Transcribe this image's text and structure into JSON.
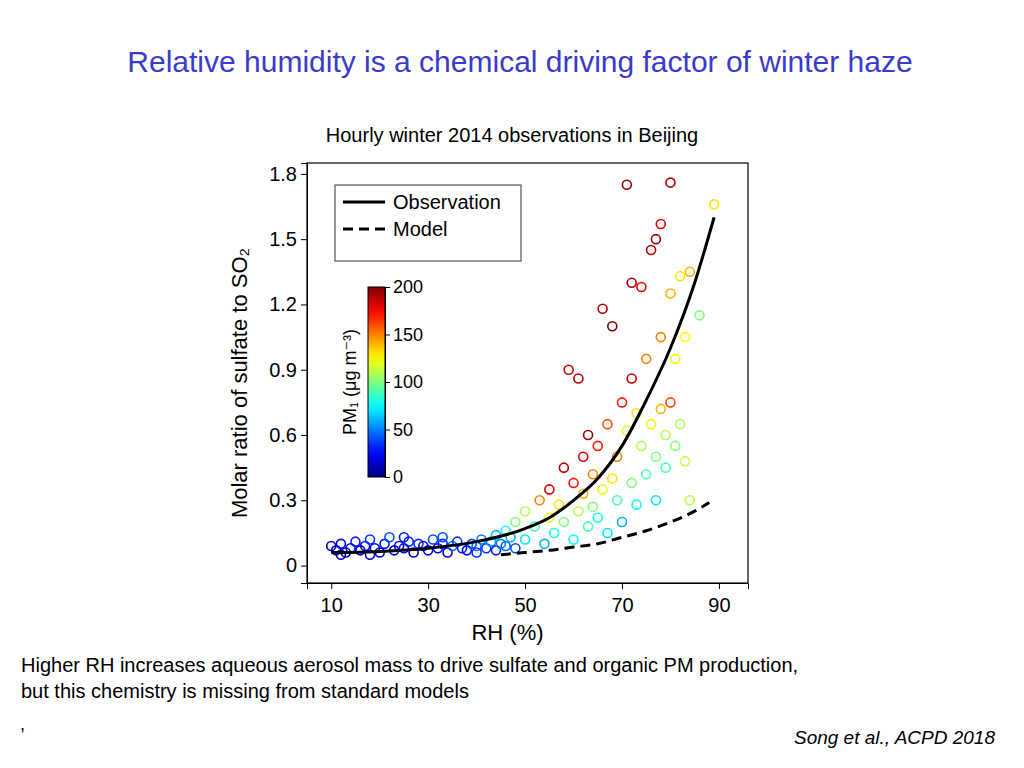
{
  "title": "Relative humidity is a chemical driving factor of winter haze",
  "caption": [
    "Higher RH increases aqueous aerosol mass to drive sulfate and organic PM production,",
    "but this chemistry is missing from standard models"
  ],
  "footnote_mark": ",",
  "citation": "Song et al., ACPD 2018",
  "chart_data": {
    "type": "scatter",
    "title": "Hourly winter 2014 observations in Beijing",
    "x_label": "RH (%)",
    "y_label": "Molar ratio of sulfate to SO₂",
    "xlim": [
      5,
      96
    ],
    "ylim": [
      -0.08,
      1.85
    ],
    "xticks": [
      10,
      30,
      50,
      70,
      90
    ],
    "yticks": [
      0,
      0.3,
      0.6,
      0.9,
      1.2,
      1.5,
      1.8
    ],
    "legend": "top-left",
    "colorbar": {
      "label": "PM₁ (μg m⁻³)",
      "range": [
        0,
        200
      ],
      "ticks": [
        0,
        50,
        100,
        150,
        200
      ]
    },
    "series": [
      {
        "type": "scatter",
        "marker": "circle",
        "x": [
          10,
          11,
          12,
          13,
          14,
          15,
          16,
          17,
          18,
          19,
          20,
          21,
          22,
          23,
          24,
          25,
          26,
          27,
          28,
          29,
          30,
          31,
          32,
          33,
          34,
          35,
          36,
          37,
          38,
          39,
          40,
          41,
          42,
          43,
          44,
          45,
          46,
          47,
          48,
          12,
          18,
          25,
          33,
          40,
          44,
          46,
          48,
          50,
          50,
          52,
          53,
          54,
          55,
          55,
          56,
          57,
          58,
          58,
          59,
          60,
          60,
          61,
          61,
          62,
          62,
          63,
          63,
          64,
          64,
          65,
          65,
          66,
          66,
          67,
          67,
          68,
          68,
          69,
          69,
          70,
          70,
          71,
          71,
          72,
          72,
          72,
          73,
          73,
          74,
          74,
          75,
          75,
          76,
          76,
          77,
          77,
          77,
          78,
          78,
          78,
          79,
          79,
          80,
          80,
          80,
          81,
          81,
          82,
          82,
          83,
          83,
          84,
          84,
          86,
          89
        ],
        "values": [
          0.09,
          0.07,
          0.1,
          0.06,
          0.08,
          0.11,
          0.07,
          0.09,
          0.12,
          0.08,
          0.06,
          0.1,
          0.13,
          0.07,
          0.09,
          0.08,
          0.11,
          0.06,
          0.1,
          0.09,
          0.07,
          0.12,
          0.08,
          0.1,
          0.06,
          0.09,
          0.11,
          0.08,
          0.07,
          0.1,
          0.09,
          0.12,
          0.08,
          0.11,
          0.07,
          0.1,
          0.09,
          0.13,
          0.08,
          0.05,
          0.05,
          0.13,
          0.13,
          0.06,
          0.14,
          0.16,
          0.2,
          0.12,
          0.25,
          0.18,
          0.3,
          0.1,
          0.22,
          0.35,
          0.15,
          0.28,
          0.45,
          0.2,
          0.9,
          0.38,
          0.12,
          0.86,
          0.25,
          0.5,
          0.33,
          0.6,
          0.18,
          0.42,
          0.27,
          0.55,
          0.22,
          1.18,
          0.35,
          0.65,
          0.15,
          1.1,
          0.4,
          0.3,
          0.5,
          0.75,
          0.2,
          1.75,
          0.62,
          0.86,
          0.38,
          1.3,
          0.7,
          0.28,
          1.28,
          0.55,
          0.95,
          0.42,
          1.45,
          0.65,
          1.5,
          0.3,
          0.5,
          1.57,
          0.72,
          1.05,
          0.45,
          0.6,
          1.76,
          1.25,
          0.75,
          0.95,
          0.55,
          1.33,
          0.65,
          1.05,
          0.48,
          1.35,
          0.3,
          1.15,
          1.66
        ],
        "color_values": [
          10,
          15,
          20,
          8,
          25,
          30,
          12,
          18,
          35,
          22,
          10,
          28,
          40,
          15,
          20,
          25,
          30,
          12,
          35,
          20,
          18,
          40,
          25,
          30,
          15,
          45,
          35,
          30,
          25,
          40,
          45,
          50,
          35,
          55,
          30,
          50,
          45,
          60,
          40,
          10,
          15,
          30,
          40,
          35,
          60,
          80,
          100,
          70,
          110,
          90,
          150,
          60,
          120,
          180,
          80,
          130,
          190,
          100,
          185,
          170,
          75,
          190,
          110,
          180,
          140,
          195,
          90,
          150,
          100,
          170,
          80,
          190,
          120,
          160,
          70,
          200,
          130,
          90,
          150,
          170,
          60,
          195,
          120,
          185,
          100,
          190,
          130,
          80,
          180,
          110,
          150,
          90,
          190,
          120,
          195,
          70,
          100,
          180,
          140,
          150,
          90,
          110,
          190,
          140,
          160,
          120,
          100,
          130,
          110,
          125,
          115,
          140,
          110,
          100,
          130
        ]
      },
      {
        "name": "Observation",
        "type": "line",
        "line_style": "solid",
        "color": "#000000",
        "x": [
          10,
          20,
          30,
          40,
          50,
          55,
          60,
          65,
          70,
          75,
          80,
          85,
          89
        ],
        "values": [
          0.06,
          0.065,
          0.08,
          0.11,
          0.17,
          0.22,
          0.3,
          0.4,
          0.55,
          0.76,
          1.0,
          1.3,
          1.6
        ]
      },
      {
        "name": "Model",
        "type": "line",
        "line_style": "dashed",
        "color": "#000000",
        "x": [
          45,
          50,
          55,
          60,
          65,
          70,
          75,
          80,
          85,
          88
        ],
        "values": [
          0.05,
          0.06,
          0.07,
          0.085,
          0.1,
          0.13,
          0.16,
          0.2,
          0.25,
          0.29
        ]
      }
    ]
  }
}
